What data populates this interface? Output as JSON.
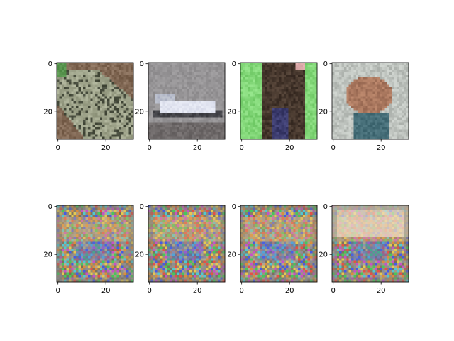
{
  "chart_data": {
    "type": "image_grid",
    "layout": {
      "rows": 2,
      "cols": 4
    },
    "panels": [
      {
        "row": 0,
        "col": 0,
        "content": "CIFAR-10 frog (green-grey textured body)",
        "style": "frog",
        "xlim": [
          -0.5,
          31.5
        ],
        "ylim": [
          31.5,
          -0.5
        ],
        "xticks": [
          0,
          20
        ],
        "yticks": [
          0,
          20
        ],
        "xticklabels": [
          "0",
          "20"
        ],
        "yticklabels": [
          "0",
          "20"
        ]
      },
      {
        "row": 0,
        "col": 1,
        "content": "CIFAR-10 white vehicle/boat on grey background",
        "style": "boat",
        "xlim": [
          -0.5,
          31.5
        ],
        "ylim": [
          31.5,
          -0.5
        ],
        "xticks": [
          0,
          20
        ],
        "yticks": [
          0,
          20
        ],
        "xticklabels": [
          "0",
          "20"
        ],
        "yticklabels": [
          "0",
          "20"
        ]
      },
      {
        "row": 0,
        "col": 2,
        "content": "CIFAR-10 dark animal (monkey/dog) on green background",
        "style": "monkey",
        "xlim": [
          -0.5,
          31.5
        ],
        "ylim": [
          31.5,
          -0.5
        ],
        "xticks": [
          0,
          20
        ],
        "yticks": [
          0,
          20
        ],
        "xticklabels": [
          "0",
          "20"
        ],
        "yticklabels": [
          "0",
          "20"
        ]
      },
      {
        "row": 0,
        "col": 3,
        "content": "CIFAR-10 brown frog on light background",
        "style": "frog2",
        "xlim": [
          -0.5,
          31.5
        ],
        "ylim": [
          31.5,
          -0.5
        ],
        "xticks": [
          0,
          20
        ],
        "yticks": [
          0,
          20
        ],
        "xticklabels": [
          "0",
          "20"
        ],
        "yticklabels": [
          "0",
          "20"
        ]
      },
      {
        "row": 1,
        "col": 0,
        "content": "generated checkerboard-artifact noise image",
        "style": "noise",
        "xlim": [
          -0.5,
          31.5
        ],
        "ylim": [
          31.5,
          -0.5
        ],
        "xticks": [
          0,
          20
        ],
        "yticks": [
          0,
          20
        ],
        "xticklabels": [
          "0",
          "20"
        ],
        "yticklabels": [
          "0",
          "20"
        ]
      },
      {
        "row": 1,
        "col": 1,
        "content": "generated checkerboard-artifact noise image",
        "style": "noise",
        "xlim": [
          -0.5,
          31.5
        ],
        "ylim": [
          31.5,
          -0.5
        ],
        "xticks": [
          0,
          20
        ],
        "yticks": [
          0,
          20
        ],
        "xticklabels": [
          "0",
          "20"
        ],
        "yticklabels": [
          "0",
          "20"
        ]
      },
      {
        "row": 1,
        "col": 2,
        "content": "generated checkerboard-artifact noise image",
        "style": "noise",
        "xlim": [
          -0.5,
          31.5
        ],
        "ylim": [
          31.5,
          -0.5
        ],
        "xticks": [
          0,
          20
        ],
        "yticks": [
          0,
          20
        ],
        "xticklabels": [
          "0",
          "20"
        ],
        "yticklabels": [
          "0",
          "20"
        ]
      },
      {
        "row": 1,
        "col": 3,
        "content": "generated checkerboard-artifact noise image with bright top band",
        "style": "noise_bright",
        "xlim": [
          -0.5,
          31.5
        ],
        "ylim": [
          31.5,
          -0.5
        ],
        "xticks": [
          0,
          20
        ],
        "yticks": [
          0,
          20
        ],
        "xticklabels": [
          "0",
          "20"
        ],
        "yticklabels": [
          "0",
          "20"
        ]
      }
    ]
  }
}
